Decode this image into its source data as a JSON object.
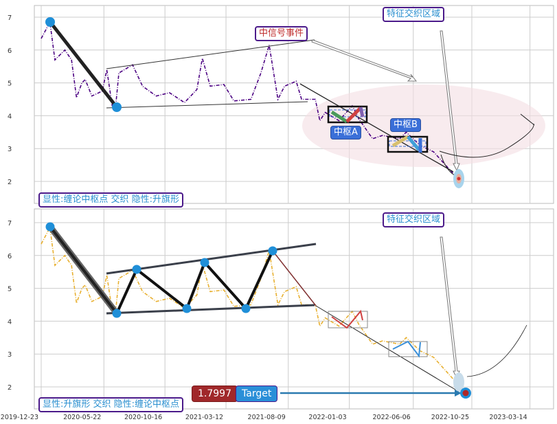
{
  "chart_data": {
    "type": "line",
    "x": [
      "2019-12-23",
      "2020-01-13",
      "2020-01-25",
      "2020-02-18",
      "2020-03-05",
      "2020-03-17",
      "2020-03-30",
      "2020-04-07",
      "2020-04-23",
      "2020-05-18",
      "2020-05-29",
      "2020-06-11",
      "2020-06-19",
      "2020-06-27",
      "2020-07-30",
      "2020-08-23",
      "2020-09-25",
      "2020-10-27",
      "2020-12-02",
      "2021-01-01",
      "2021-01-14",
      "2021-02-02",
      "2021-03-07",
      "2021-03-31",
      "2021-05-11",
      "2021-06-04",
      "2021-06-24",
      "2021-07-15",
      "2021-07-31",
      "2021-08-28",
      "2021-09-10",
      "2021-10-13",
      "2021-10-24",
      "2021-11-06",
      "2021-12-09",
      "2022-01-10",
      "2022-01-26",
      "2022-02-28",
      "2022-03-24",
      "2022-05-04",
      "2022-05-20",
      "2022-06-22",
      "2022-07-25",
      "2022-09-20"
    ],
    "y": [
      6.35,
      6.85,
      5.7,
      6.0,
      5.7,
      4.55,
      5.0,
      5.1,
      4.6,
      4.75,
      5.4,
      4.3,
      4.25,
      5.3,
      5.55,
      4.9,
      4.6,
      4.7,
      4.4,
      4.8,
      5.75,
      4.9,
      4.95,
      4.45,
      4.5,
      5.3,
      6.15,
      4.5,
      4.9,
      5.05,
      4.5,
      4.5,
      3.85,
      4.1,
      3.85,
      4.3,
      3.9,
      3.3,
      3.4,
      3.3,
      3.5,
      3.1,
      2.9,
      2.1
    ],
    "xticks": [
      "2019-12-23",
      "2020-05-22",
      "2020-10-16",
      "2021-03-12",
      "2021-08-09",
      "2022-01-03",
      "2022-06-06",
      "2022-10-25",
      "2023-03-14"
    ],
    "yticks": [
      2,
      3,
      4,
      5,
      6,
      7
    ],
    "grid": true,
    "panels": [
      {
        "series_color": "#4b0082",
        "annotations": {
          "signal_event": "中信号事件",
          "feature_zone": "特征交织区域",
          "pivot_a": "中枢A",
          "pivot_b": "中枢B",
          "legend": "显性:缠论中枢点 交织 隐性:升旗形"
        }
      },
      {
        "series_color": "#e8b030",
        "annotations": {
          "feature_zone": "特征交织区域",
          "target_value": "1.7997",
          "target_label": "Target",
          "legend": "显性:升旗形 交织 隐性:缠论中枢点"
        }
      }
    ]
  }
}
